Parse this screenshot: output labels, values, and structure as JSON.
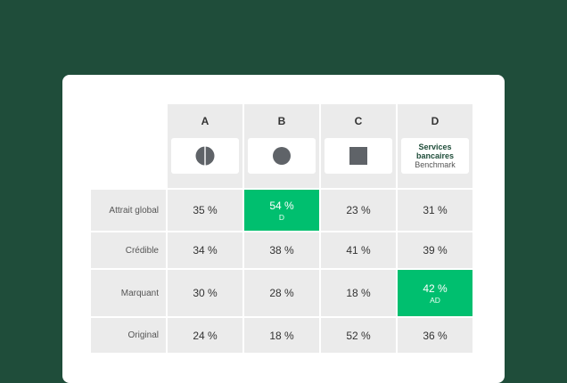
{
  "columns": [
    {
      "letter": "A",
      "logo": "half-circle-icon"
    },
    {
      "letter": "B",
      "logo": "circle-icon"
    },
    {
      "letter": "C",
      "logo": "square-icon"
    },
    {
      "letter": "D",
      "logo_text": "Services bancaires",
      "logo_sub": "Benchmark"
    }
  ],
  "rows": [
    {
      "label": "Attrait global",
      "values": [
        "35 %",
        "54 %",
        "23 %",
        "31 %"
      ],
      "highlight": {
        "col": 1,
        "sub": "D"
      }
    },
    {
      "label": "Crédible",
      "values": [
        "34 %",
        "38 %",
        "41 %",
        "39 %"
      ]
    },
    {
      "label": "Marquant",
      "values": [
        "30 %",
        "28 %",
        "18 %",
        "42 %"
      ],
      "highlight": {
        "col": 3,
        "sub": "AD"
      }
    },
    {
      "label": "Original",
      "values": [
        "24 %",
        "18 %",
        "52 %",
        "36 %"
      ]
    }
  ],
  "colors": {
    "background": "#1f4d3a",
    "highlight": "#00bf6f",
    "cell": "#ebebeb",
    "icon": "#5f6368"
  }
}
